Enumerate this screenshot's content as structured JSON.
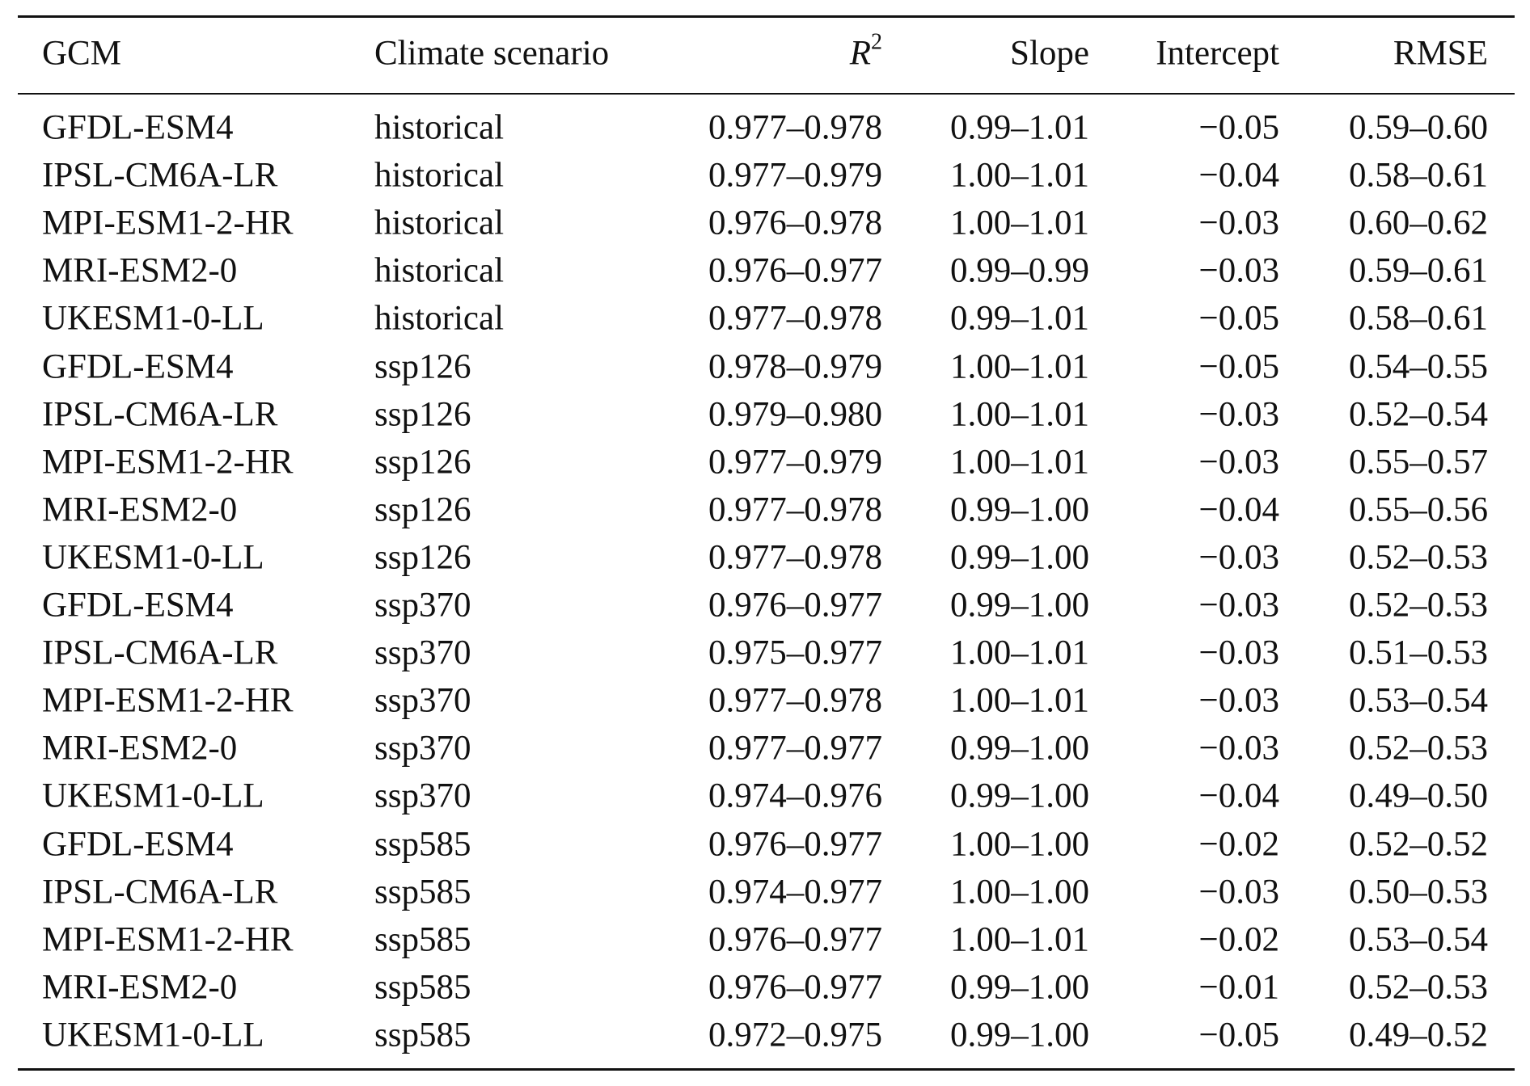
{
  "table": {
    "header": [
      "GCM",
      "Climate scenario",
      {
        "base": "R",
        "sup": "2"
      },
      "Slope",
      "Intercept",
      "RMSE"
    ],
    "rows": [
      [
        "GFDL-ESM4",
        "historical",
        "0.977–0.978",
        "0.99–1.01",
        "−0.05",
        "0.59–0.60"
      ],
      [
        "IPSL-CM6A-LR",
        "historical",
        "0.977–0.979",
        "1.00–1.01",
        "−0.04",
        "0.58–0.61"
      ],
      [
        "MPI-ESM1-2-HR",
        "historical",
        "0.976–0.978",
        "1.00–1.01",
        "−0.03",
        "0.60–0.62"
      ],
      [
        "MRI-ESM2-0",
        "historical",
        "0.976–0.977",
        "0.99–0.99",
        "−0.03",
        "0.59–0.61"
      ],
      [
        "UKESM1-0-LL",
        "historical",
        "0.977–0.978",
        "0.99–1.01",
        "−0.05",
        "0.58–0.61"
      ],
      [
        "GFDL-ESM4",
        "ssp126",
        "0.978–0.979",
        "1.00–1.01",
        "−0.05",
        "0.54–0.55"
      ],
      [
        "IPSL-CM6A-LR",
        "ssp126",
        "0.979–0.980",
        "1.00–1.01",
        "−0.03",
        "0.52–0.54"
      ],
      [
        "MPI-ESM1-2-HR",
        "ssp126",
        "0.977–0.979",
        "1.00–1.01",
        "−0.03",
        "0.55–0.57"
      ],
      [
        "MRI-ESM2-0",
        "ssp126",
        "0.977–0.978",
        "0.99–1.00",
        "−0.04",
        "0.55–0.56"
      ],
      [
        "UKESM1-0-LL",
        "ssp126",
        "0.977–0.978",
        "0.99–1.00",
        "−0.03",
        "0.52–0.53"
      ],
      [
        "GFDL-ESM4",
        "ssp370",
        "0.976–0.977",
        "0.99–1.00",
        "−0.03",
        "0.52–0.53"
      ],
      [
        "IPSL-CM6A-LR",
        "ssp370",
        "0.975–0.977",
        "1.00–1.01",
        "−0.03",
        "0.51–0.53"
      ],
      [
        "MPI-ESM1-2-HR",
        "ssp370",
        "0.977–0.978",
        "1.00–1.01",
        "−0.03",
        "0.53–0.54"
      ],
      [
        "MRI-ESM2-0",
        "ssp370",
        "0.977–0.977",
        "0.99–1.00",
        "−0.03",
        "0.52–0.53"
      ],
      [
        "UKESM1-0-LL",
        "ssp370",
        "0.974–0.976",
        "0.99–1.00",
        "−0.04",
        "0.49–0.50"
      ],
      [
        "GFDL-ESM4",
        "ssp585",
        "0.976–0.977",
        "1.00–1.00",
        "−0.02",
        "0.52–0.52"
      ],
      [
        "IPSL-CM6A-LR",
        "ssp585",
        "0.974–0.977",
        "1.00–1.00",
        "−0.03",
        "0.50–0.53"
      ],
      [
        "MPI-ESM1-2-HR",
        "ssp585",
        "0.976–0.977",
        "1.00–1.01",
        "−0.02",
        "0.53–0.54"
      ],
      [
        "MRI-ESM2-0",
        "ssp585",
        "0.976–0.977",
        "0.99–1.00",
        "−0.01",
        "0.52–0.53"
      ],
      [
        "UKESM1-0-LL",
        "ssp585",
        "0.972–0.975",
        "0.99–1.00",
        "−0.05",
        "0.49–0.52"
      ]
    ]
  }
}
